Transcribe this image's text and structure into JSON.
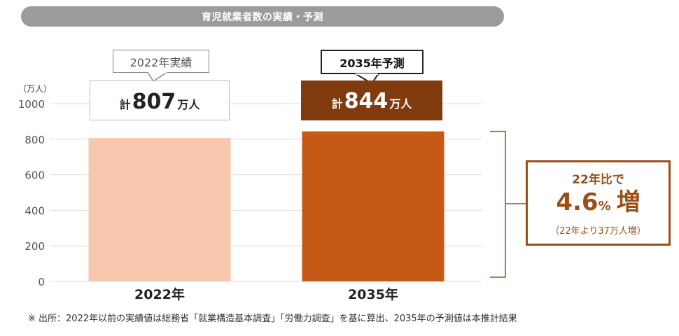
{
  "header": {
    "title": "育児就業者数の実績・予測"
  },
  "chart_data": {
    "type": "bar",
    "unit_label": "（万人）",
    "categories": [
      "2022年",
      "2035年"
    ],
    "values": [
      807,
      844
    ],
    "ylim": [
      0,
      1000
    ],
    "yticks": [
      0,
      200,
      400,
      600,
      800,
      1000
    ],
    "grid": true,
    "bar_colors": [
      "#f7c8ad",
      "#c55a17"
    ],
    "annotations": {
      "tag_2022": "2022年実績",
      "tag_2035": "2035年予測",
      "total_prefix": "計",
      "total_suffix": "万人",
      "total_2022": "807",
      "total_2035": "844",
      "growth_line1": "22年比で",
      "growth_value": "4.6",
      "growth_pct": "%",
      "growth_word": "増",
      "growth_note": "（22年より37万人増）"
    }
  },
  "footnote": "※ 出所：2022年以前の実績値は総務省「就業構造基本調査」「労働力調査」を基に算出、2035年の予測値は本推計結果",
  "colors": {
    "accent_dark": "#7f3a0d",
    "accent": "#c55a17",
    "light": "#f7c8ad",
    "growth": "#9a4f18",
    "title_bg": "#9b9b9b"
  }
}
